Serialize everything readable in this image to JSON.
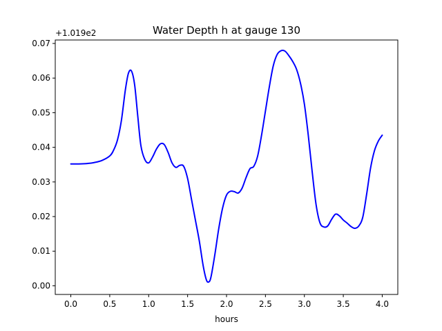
{
  "chart_data": {
    "type": "line",
    "title": "Water Depth h at gauge 130",
    "xlabel": "hours",
    "ylabel": "",
    "y_offset_label": "+1.019e2",
    "xlim": [
      -0.2,
      4.2
    ],
    "ylim": [
      -0.0025,
      0.071
    ],
    "xticks": [
      0.0,
      0.5,
      1.0,
      1.5,
      2.0,
      2.5,
      3.0,
      3.5,
      4.0
    ],
    "xtick_labels": [
      "0.0",
      "0.5",
      "1.0",
      "1.5",
      "2.0",
      "2.5",
      "3.0",
      "3.5",
      "4.0"
    ],
    "yticks": [
      0.0,
      0.01,
      0.02,
      0.03,
      0.04,
      0.05,
      0.06,
      0.07
    ],
    "ytick_labels": [
      "0.00",
      "0.01",
      "0.02",
      "0.03",
      "0.04",
      "0.05",
      "0.06",
      "0.07"
    ],
    "grid": false,
    "series": [
      {
        "color": "#0000ff",
        "x": [
          0.0,
          0.1,
          0.2,
          0.3,
          0.4,
          0.5,
          0.55,
          0.6,
          0.65,
          0.7,
          0.74,
          0.78,
          0.82,
          0.86,
          0.9,
          0.95,
          1.0,
          1.05,
          1.1,
          1.15,
          1.2,
          1.25,
          1.3,
          1.35,
          1.4,
          1.45,
          1.5,
          1.55,
          1.6,
          1.65,
          1.7,
          1.74,
          1.77,
          1.8,
          1.85,
          1.9,
          1.95,
          2.0,
          2.05,
          2.1,
          2.15,
          2.2,
          2.25,
          2.3,
          2.35,
          2.4,
          2.45,
          2.5,
          2.55,
          2.6,
          2.65,
          2.7,
          2.75,
          2.8,
          2.85,
          2.9,
          2.95,
          3.0,
          3.05,
          3.1,
          3.15,
          3.2,
          3.25,
          3.3,
          3.35,
          3.4,
          3.45,
          3.5,
          3.55,
          3.6,
          3.65,
          3.7,
          3.75,
          3.8,
          3.85,
          3.9,
          3.95,
          4.0
        ],
        "y": [
          0.0352,
          0.0352,
          0.0353,
          0.0356,
          0.0362,
          0.0375,
          0.0392,
          0.0422,
          0.0478,
          0.0565,
          0.0614,
          0.062,
          0.058,
          0.049,
          0.0405,
          0.0365,
          0.0355,
          0.0372,
          0.0395,
          0.041,
          0.0408,
          0.0385,
          0.0355,
          0.0342,
          0.0348,
          0.0345,
          0.031,
          0.025,
          0.019,
          0.013,
          0.0058,
          0.0018,
          0.0011,
          0.0025,
          0.009,
          0.0165,
          0.0225,
          0.0262,
          0.0273,
          0.0272,
          0.0268,
          0.0282,
          0.0312,
          0.0338,
          0.0345,
          0.0375,
          0.0435,
          0.0505,
          0.0575,
          0.0635,
          0.0668,
          0.0679,
          0.0678,
          0.0665,
          0.0648,
          0.0625,
          0.0585,
          0.0525,
          0.0435,
          0.033,
          0.0235,
          0.0182,
          0.017,
          0.0173,
          0.0192,
          0.0207,
          0.0202,
          0.019,
          0.0181,
          0.0171,
          0.0166,
          0.0173,
          0.0198,
          0.0265,
          0.034,
          0.039,
          0.0418,
          0.0435
        ]
      }
    ]
  }
}
